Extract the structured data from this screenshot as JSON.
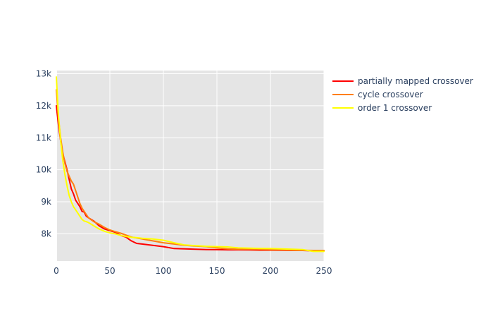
{
  "chart_data": {
    "type": "line",
    "title": "",
    "xlabel": "",
    "ylabel": "",
    "xlim": [
      0,
      250
    ],
    "ylim": [
      7150,
      13100
    ],
    "x_ticks": [
      0,
      50,
      100,
      150,
      200,
      250
    ],
    "x_tick_labels": [
      "0",
      "50",
      "100",
      "150",
      "200",
      "250"
    ],
    "y_ticks": [
      8000,
      9000,
      10000,
      11000,
      12000,
      13000
    ],
    "y_tick_labels": [
      "8k",
      "9k",
      "10k",
      "11k",
      "12k",
      "13k"
    ],
    "grid": true,
    "legend_position": "top-right",
    "plot_background": "#e5e5e5",
    "series": [
      {
        "name": "partially mapped crossover",
        "color": "#ff0000",
        "x": [
          0,
          2,
          4,
          6,
          8,
          10,
          12,
          14,
          16,
          18,
          20,
          22,
          24,
          26,
          28,
          30,
          35,
          40,
          45,
          50,
          55,
          60,
          65,
          70,
          75,
          80,
          90,
          100,
          110,
          120,
          130,
          140,
          150,
          160,
          170,
          180,
          190,
          200,
          210,
          220,
          230,
          240,
          250
        ],
        "y": [
          12000,
          11400,
          10900,
          10500,
          10250,
          10000,
          9700,
          9400,
          9250,
          9050,
          8950,
          8850,
          8700,
          8680,
          8550,
          8500,
          8400,
          8250,
          8150,
          8100,
          8050,
          7950,
          7900,
          7780,
          7700,
          7680,
          7640,
          7600,
          7540,
          7530,
          7520,
          7510,
          7505,
          7500,
          7500,
          7495,
          7490,
          7490,
          7485,
          7480,
          7480,
          7470,
          7470
        ]
      },
      {
        "name": "cycle crossover",
        "color": "#ff7f0e",
        "x": [
          0,
          2,
          4,
          6,
          8,
          10,
          12,
          14,
          16,
          18,
          20,
          22,
          24,
          26,
          28,
          30,
          35,
          40,
          45,
          50,
          55,
          60,
          65,
          70,
          75,
          80,
          90,
          100,
          110,
          120,
          130,
          140,
          150,
          160,
          170,
          180,
          190,
          200,
          210,
          220,
          230,
          240,
          250
        ],
        "y": [
          12500,
          11600,
          11000,
          10550,
          10200,
          9950,
          9800,
          9650,
          9550,
          9350,
          9150,
          8950,
          8800,
          8700,
          8600,
          8500,
          8380,
          8300,
          8200,
          8120,
          8070,
          8020,
          7960,
          7900,
          7870,
          7840,
          7780,
          7720,
          7680,
          7640,
          7620,
          7600,
          7560,
          7530,
          7520,
          7515,
          7510,
          7500,
          7495,
          7490,
          7485,
          7480,
          7480
        ]
      },
      {
        "name": "order 1 crossover",
        "color": "#ffff00",
        "x": [
          0,
          2,
          4,
          6,
          8,
          10,
          12,
          14,
          16,
          18,
          20,
          22,
          24,
          26,
          28,
          30,
          35,
          40,
          45,
          50,
          55,
          60,
          65,
          70,
          75,
          80,
          90,
          100,
          110,
          120,
          130,
          140,
          150,
          160,
          170,
          180,
          190,
          200,
          210,
          220,
          230,
          240,
          250
        ],
        "y": [
          12900,
          11700,
          10900,
          10300,
          9850,
          9500,
          9200,
          9000,
          8850,
          8750,
          8650,
          8550,
          8450,
          8400,
          8380,
          8350,
          8250,
          8150,
          8080,
          8030,
          8000,
          7950,
          7920,
          7890,
          7880,
          7860,
          7840,
          7800,
          7720,
          7650,
          7630,
          7610,
          7600,
          7590,
          7560,
          7550,
          7545,
          7540,
          7530,
          7520,
          7510,
          7450,
          7450
        ]
      }
    ]
  }
}
